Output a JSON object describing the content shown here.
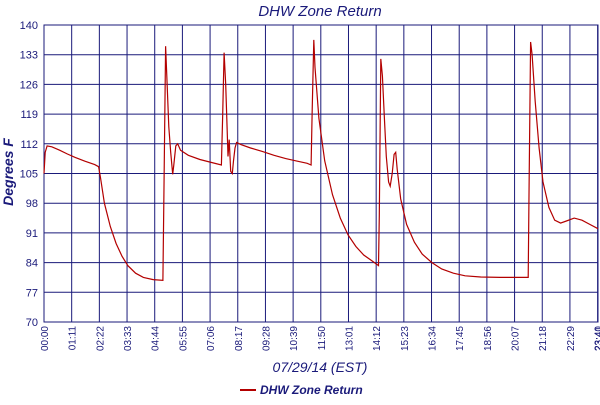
{
  "chart_data": {
    "type": "line",
    "title": "DHW Zone Return",
    "xlabel": "07/29/14 (EST)",
    "ylabel": "Degrees F",
    "ylim": [
      70,
      140
    ],
    "y_ticks": [
      "70",
      "77",
      "84",
      "91",
      "98",
      "105",
      "112",
      "119",
      "126",
      "133",
      "140"
    ],
    "x_tick_labels": [
      "00:00",
      "01:11",
      "02:22",
      "03:33",
      "04:44",
      "05:55",
      "07:06",
      "08:17",
      "09:28",
      "10:39",
      "11:50",
      "13:01",
      "14:12",
      "15:23",
      "16:34",
      "17:45",
      "18:56",
      "20:07",
      "21:18",
      "22:29",
      "23:40",
      "23:41"
    ],
    "grid": true,
    "legend_position": "bottom-center",
    "colors": {
      "series": "#b30000",
      "grid": "#1a1a7a",
      "text": "#1a1a7a",
      "background": "#ffffff"
    },
    "series": [
      {
        "name": "DHW Zone Return",
        "points": [
          [
            "00:00",
            105
          ],
          [
            "00:03",
            110.0
          ],
          [
            "00:08",
            111.5
          ],
          [
            "00:20",
            111.3
          ],
          [
            "00:40",
            110.5
          ],
          [
            "01:00",
            109.6
          ],
          [
            "01:20",
            108.8
          ],
          [
            "01:45",
            107.9
          ],
          [
            "02:10",
            107.1
          ],
          [
            "02:20",
            106.6
          ],
          [
            "02:25",
            104.0
          ],
          [
            "02:35",
            98.0
          ],
          [
            "02:50",
            92.5
          ],
          [
            "03:05",
            88.5
          ],
          [
            "03:20",
            85.5
          ],
          [
            "03:35",
            83.3
          ],
          [
            "03:55",
            81.5
          ],
          [
            "04:15",
            80.5
          ],
          [
            "04:40",
            80.0
          ],
          [
            "05:05",
            79.8
          ],
          [
            "05:08",
            104.0
          ],
          [
            "05:12",
            135.0
          ],
          [
            "05:15",
            128.0
          ],
          [
            "05:20",
            116.0
          ],
          [
            "05:25",
            110.0
          ],
          [
            "05:30",
            104.8
          ],
          [
            "05:33",
            107.0
          ],
          [
            "05:38",
            111.5
          ],
          [
            "05:43",
            112.0
          ],
          [
            "05:50",
            110.5
          ],
          [
            "06:10",
            109.3
          ],
          [
            "06:40",
            108.3
          ],
          [
            "07:10",
            107.6
          ],
          [
            "07:35",
            107.0
          ],
          [
            "07:38",
            118.0
          ],
          [
            "07:42",
            133.5
          ],
          [
            "07:46",
            126.0
          ],
          [
            "07:50",
            115.0
          ],
          [
            "07:52",
            109.0
          ],
          [
            "07:55",
            113.0
          ],
          [
            "07:59",
            105.5
          ],
          [
            "08:03",
            105.0
          ],
          [
            "08:06",
            108.0
          ],
          [
            "08:10",
            111.0
          ],
          [
            "08:14",
            112.3
          ],
          [
            "08:25",
            111.8
          ],
          [
            "08:50",
            111.0
          ],
          [
            "09:20",
            110.2
          ],
          [
            "09:50",
            109.3
          ],
          [
            "10:20",
            108.5
          ],
          [
            "10:50",
            107.9
          ],
          [
            "11:15",
            107.4
          ],
          [
            "11:25",
            107.0
          ],
          [
            "11:28",
            120.0
          ],
          [
            "11:32",
            136.5
          ],
          [
            "11:35",
            130.0
          ],
          [
            "11:45",
            118.0
          ],
          [
            "12:00",
            108.0
          ],
          [
            "12:20",
            100.0
          ],
          [
            "12:40",
            94.5
          ],
          [
            "13:00",
            90.5
          ],
          [
            "13:20",
            87.8
          ],
          [
            "13:40",
            85.8
          ],
          [
            "14:00",
            84.5
          ],
          [
            "14:18",
            83.3
          ],
          [
            "14:20",
            95.0
          ],
          [
            "14:24",
            132.0
          ],
          [
            "14:28",
            128.0
          ],
          [
            "14:33",
            118.0
          ],
          [
            "14:38",
            109.0
          ],
          [
            "14:44",
            103.0
          ],
          [
            "14:48",
            102.0
          ],
          [
            "14:53",
            105.0
          ],
          [
            "14:58",
            109.5
          ],
          [
            "15:02",
            110.0
          ],
          [
            "15:06",
            106.0
          ],
          [
            "15:15",
            99.0
          ],
          [
            "15:30",
            93.0
          ],
          [
            "15:50",
            88.8
          ],
          [
            "16:10",
            86.0
          ],
          [
            "16:35",
            84.0
          ],
          [
            "17:00",
            82.5
          ],
          [
            "17:30",
            81.5
          ],
          [
            "18:00",
            80.9
          ],
          [
            "18:40",
            80.6
          ],
          [
            "19:30",
            80.5
          ],
          [
            "20:30",
            80.5
          ],
          [
            "20:42",
            80.5
          ],
          [
            "20:44",
            100.0
          ],
          [
            "20:48",
            136.0
          ],
          [
            "20:52",
            133.0
          ],
          [
            "21:00",
            122.0
          ],
          [
            "21:10",
            111.0
          ],
          [
            "21:20",
            103.0
          ],
          [
            "21:35",
            97.0
          ],
          [
            "21:50",
            94.0
          ],
          [
            "22:05",
            93.3
          ],
          [
            "22:20",
            93.8
          ],
          [
            "22:40",
            94.5
          ],
          [
            "23:00",
            94.0
          ],
          [
            "23:20",
            93.0
          ],
          [
            "23:41",
            92.0
          ]
        ]
      }
    ]
  }
}
